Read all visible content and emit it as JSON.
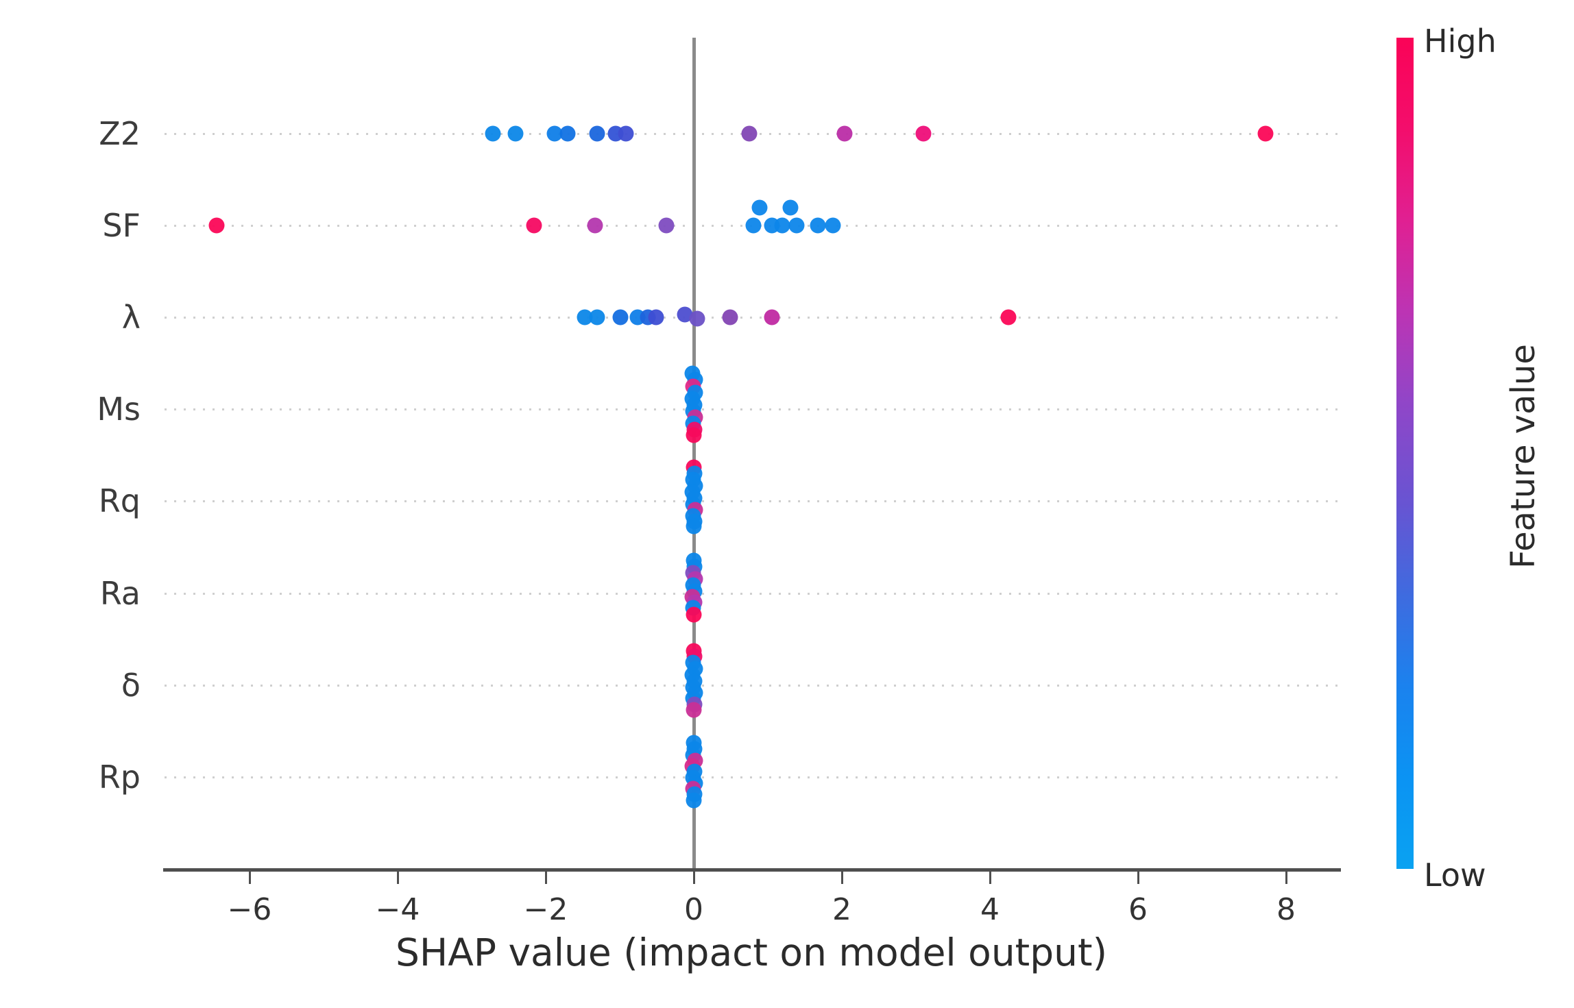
{
  "figure": {
    "xlabel": "SHAP value (impact on model output)",
    "x_tick_labels": [
      "−6",
      "−4",
      "−2",
      "0",
      "2",
      "4",
      "6",
      "8"
    ],
    "feature_labels": [
      "Z2",
      "SF",
      "λ",
      "Ms",
      "Rq",
      "Ra",
      "δ",
      "Rp"
    ],
    "colorbar": {
      "high_label": "High",
      "low_label": "Low",
      "title": "Feature value",
      "gradient_top_to_bottom": [
        "#fa0357",
        "#f30e6c",
        "#e02092",
        "#bc34b4",
        "#9046c8",
        "#6854d2",
        "#3f6bdf",
        "#1b82ee",
        "#0b93f3",
        "#0aa2f1"
      ]
    },
    "colors": {
      "high": "#fb0757",
      "low": "#0c87e8",
      "zero_line": "#8a8a8a",
      "axis": "#4f4f4f",
      "gridline": "#cfcfcf"
    }
  },
  "chart_data": {
    "type": "scatter",
    "subtype": "shap-beeswarm",
    "title": "",
    "xlabel": "SHAP value (impact on model output)",
    "ylabel": "",
    "xlim": [
      -7.15,
      8.7
    ],
    "x_ticks": [
      -6,
      -4,
      -2,
      0,
      2,
      4,
      6,
      8
    ],
    "grid": "dotted-horizontal-rows",
    "legend": {
      "type": "colorbar",
      "high": "High",
      "low": "Low",
      "title": "Feature value",
      "position": "right"
    },
    "features": [
      "Z2",
      "SF",
      "λ",
      "Ms",
      "Rq",
      "Ra",
      "δ",
      "Rp"
    ],
    "points": {
      "Z2": [
        {
          "v": -2.71,
          "dy": 0,
          "c": "#0c87e8"
        },
        {
          "v": -2.41,
          "dy": 0,
          "c": "#0c87e8"
        },
        {
          "v": -1.88,
          "dy": 0,
          "c": "#0f7ee8"
        },
        {
          "v": -1.7,
          "dy": 0,
          "c": "#1272e3"
        },
        {
          "v": -1.31,
          "dy": 0,
          "c": "#1a66dd"
        },
        {
          "v": -1.06,
          "dy": 0,
          "c": "#3353d6"
        },
        {
          "v": -0.92,
          "dy": 0,
          "c": "#3e4ed3"
        },
        {
          "v": 0.75,
          "dy": 0,
          "c": "#8247b4"
        },
        {
          "v": 2.04,
          "dy": 0,
          "c": "#bb2da6"
        },
        {
          "v": 3.1,
          "dy": 0,
          "c": "#ee0e79"
        },
        {
          "v": 7.72,
          "dy": 0,
          "c": "#fb0757"
        }
      ],
      "SF": [
        {
          "v": -6.44,
          "dy": 0,
          "c": "#fb0757"
        },
        {
          "v": -2.16,
          "dy": 0,
          "c": "#f50a62"
        },
        {
          "v": -1.33,
          "dy": 0,
          "c": "#b437ae"
        },
        {
          "v": -0.37,
          "dy": 0,
          "c": "#7e4cc0"
        },
        {
          "v": 0.81,
          "dy": 0,
          "c": "#0d86ea"
        },
        {
          "v": 0.89,
          "dy": -26,
          "c": "#0d86ea"
        },
        {
          "v": 1.06,
          "dy": 0,
          "c": "#0d86ea"
        },
        {
          "v": 1.19,
          "dy": 0,
          "c": "#0d86ea"
        },
        {
          "v": 1.31,
          "dy": -26,
          "c": "#0d86ea"
        },
        {
          "v": 1.39,
          "dy": 0,
          "c": "#0d86ea"
        },
        {
          "v": 1.68,
          "dy": 0,
          "c": "#0d86ea"
        },
        {
          "v": 1.88,
          "dy": 0,
          "c": "#0d86ea"
        }
      ],
      "λ": [
        {
          "v": -1.47,
          "dy": 0,
          "c": "#0c87e8"
        },
        {
          "v": -1.31,
          "dy": 0,
          "c": "#0c87e8"
        },
        {
          "v": -0.99,
          "dy": 0,
          "c": "#146ee0"
        },
        {
          "v": -0.76,
          "dy": 0,
          "c": "#0f7ee8"
        },
        {
          "v": -0.62,
          "dy": 0,
          "c": "#1e63dc"
        },
        {
          "v": -0.51,
          "dy": 0,
          "c": "#3e4ed3"
        },
        {
          "v": -0.12,
          "dy": -4,
          "c": "#4d4ed0"
        },
        {
          "v": 0.05,
          "dy": 2,
          "c": "#6b51c6"
        },
        {
          "v": 0.49,
          "dy": 0,
          "c": "#8345b3"
        },
        {
          "v": 1.06,
          "dy": 0,
          "c": "#c02aa2"
        },
        {
          "v": 4.25,
          "dy": 0,
          "c": "#fb0757"
        }
      ],
      "Ms": [
        {
          "v": -0.02,
          "dy": -52,
          "c": "#0c86e9"
        },
        {
          "v": 0.02,
          "dy": -43,
          "c": "#0c86e9"
        },
        {
          "v": -0.01,
          "dy": -33,
          "c": "#e02887"
        },
        {
          "v": 0.02,
          "dy": -24,
          "c": "#0c86e9"
        },
        {
          "v": -0.02,
          "dy": -15,
          "c": "#0c86e9"
        },
        {
          "v": 0.01,
          "dy": -6,
          "c": "#0c86e9"
        },
        {
          "v": -0.01,
          "dy": 3,
          "c": "#0c86e9"
        },
        {
          "v": 0.02,
          "dy": 12,
          "c": "#c92f96"
        },
        {
          "v": -0.01,
          "dy": 21,
          "c": "#0c86e9"
        },
        {
          "v": 0.01,
          "dy": 30,
          "c": "#ef0f68"
        },
        {
          "v": 0.0,
          "dy": 38,
          "c": "#f70a5c"
        }
      ],
      "Rq": [
        {
          "v": 0.0,
          "dy": -49,
          "c": "#f70a5c"
        },
        {
          "v": 0.01,
          "dy": -40,
          "c": "#0c86e9"
        },
        {
          "v": -0.01,
          "dy": -31,
          "c": "#0c86e9"
        },
        {
          "v": 0.02,
          "dy": -22,
          "c": "#0c86e9"
        },
        {
          "v": -0.02,
          "dy": -13,
          "c": "#0c86e9"
        },
        {
          "v": 0.01,
          "dy": -4,
          "c": "#0c86e9"
        },
        {
          "v": -0.01,
          "dy": 5,
          "c": "#0c86e9"
        },
        {
          "v": 0.02,
          "dy": 13,
          "c": "#c92f96"
        },
        {
          "v": -0.01,
          "dy": 22,
          "c": "#0c86e9"
        },
        {
          "v": 0.01,
          "dy": 30,
          "c": "#0c86e9"
        },
        {
          "v": 0.0,
          "dy": 37,
          "c": "#0c86e9"
        }
      ],
      "Ra": [
        {
          "v": 0.0,
          "dy": -48,
          "c": "#0c86e9"
        },
        {
          "v": 0.01,
          "dy": -39,
          "c": "#0c86e9"
        },
        {
          "v": -0.01,
          "dy": -30,
          "c": "#7e4cc0"
        },
        {
          "v": 0.02,
          "dy": -21,
          "c": "#b437ae"
        },
        {
          "v": -0.01,
          "dy": -12,
          "c": "#0c86e9"
        },
        {
          "v": 0.01,
          "dy": -3,
          "c": "#0c86e9"
        },
        {
          "v": -0.02,
          "dy": 5,
          "c": "#c92f96"
        },
        {
          "v": 0.01,
          "dy": 13,
          "c": "#b437ae"
        },
        {
          "v": -0.01,
          "dy": 21,
          "c": "#0c86e9"
        },
        {
          "v": 0.0,
          "dy": 31,
          "c": "#fb0757"
        }
      ],
      "δ": [
        {
          "v": 0.0,
          "dy": -50,
          "c": "#f70a5c"
        },
        {
          "v": 0.01,
          "dy": -42,
          "c": "#ef0f68"
        },
        {
          "v": -0.01,
          "dy": -33,
          "c": "#0c86e9"
        },
        {
          "v": 0.02,
          "dy": -24,
          "c": "#0c86e9"
        },
        {
          "v": -0.02,
          "dy": -15,
          "c": "#0c86e9"
        },
        {
          "v": 0.01,
          "dy": -6,
          "c": "#0c86e9"
        },
        {
          "v": -0.01,
          "dy": 3,
          "c": "#0c86e9"
        },
        {
          "v": 0.02,
          "dy": 11,
          "c": "#0c86e9"
        },
        {
          "v": -0.01,
          "dy": 19,
          "c": "#0c86e9"
        },
        {
          "v": 0.01,
          "dy": 28,
          "c": "#7e4cc0"
        },
        {
          "v": 0.0,
          "dy": 36,
          "c": "#c92f96"
        }
      ],
      "Rp": [
        {
          "v": 0.0,
          "dy": -50,
          "c": "#0c86e9"
        },
        {
          "v": 0.01,
          "dy": -41,
          "c": "#0c86e9"
        },
        {
          "v": -0.01,
          "dy": -32,
          "c": "#0c86e9"
        },
        {
          "v": 0.02,
          "dy": -24,
          "c": "#c92f96"
        },
        {
          "v": -0.02,
          "dy": -16,
          "c": "#d62a8b"
        },
        {
          "v": 0.01,
          "dy": -8,
          "c": "#0c86e9"
        },
        {
          "v": -0.01,
          "dy": 1,
          "c": "#0c86e9"
        },
        {
          "v": 0.02,
          "dy": 9,
          "c": "#0c86e9"
        },
        {
          "v": -0.01,
          "dy": 17,
          "c": "#c92f96"
        },
        {
          "v": 0.01,
          "dy": 25,
          "c": "#0c86e9"
        },
        {
          "v": 0.0,
          "dy": 34,
          "c": "#0c86e9"
        }
      ]
    }
  }
}
